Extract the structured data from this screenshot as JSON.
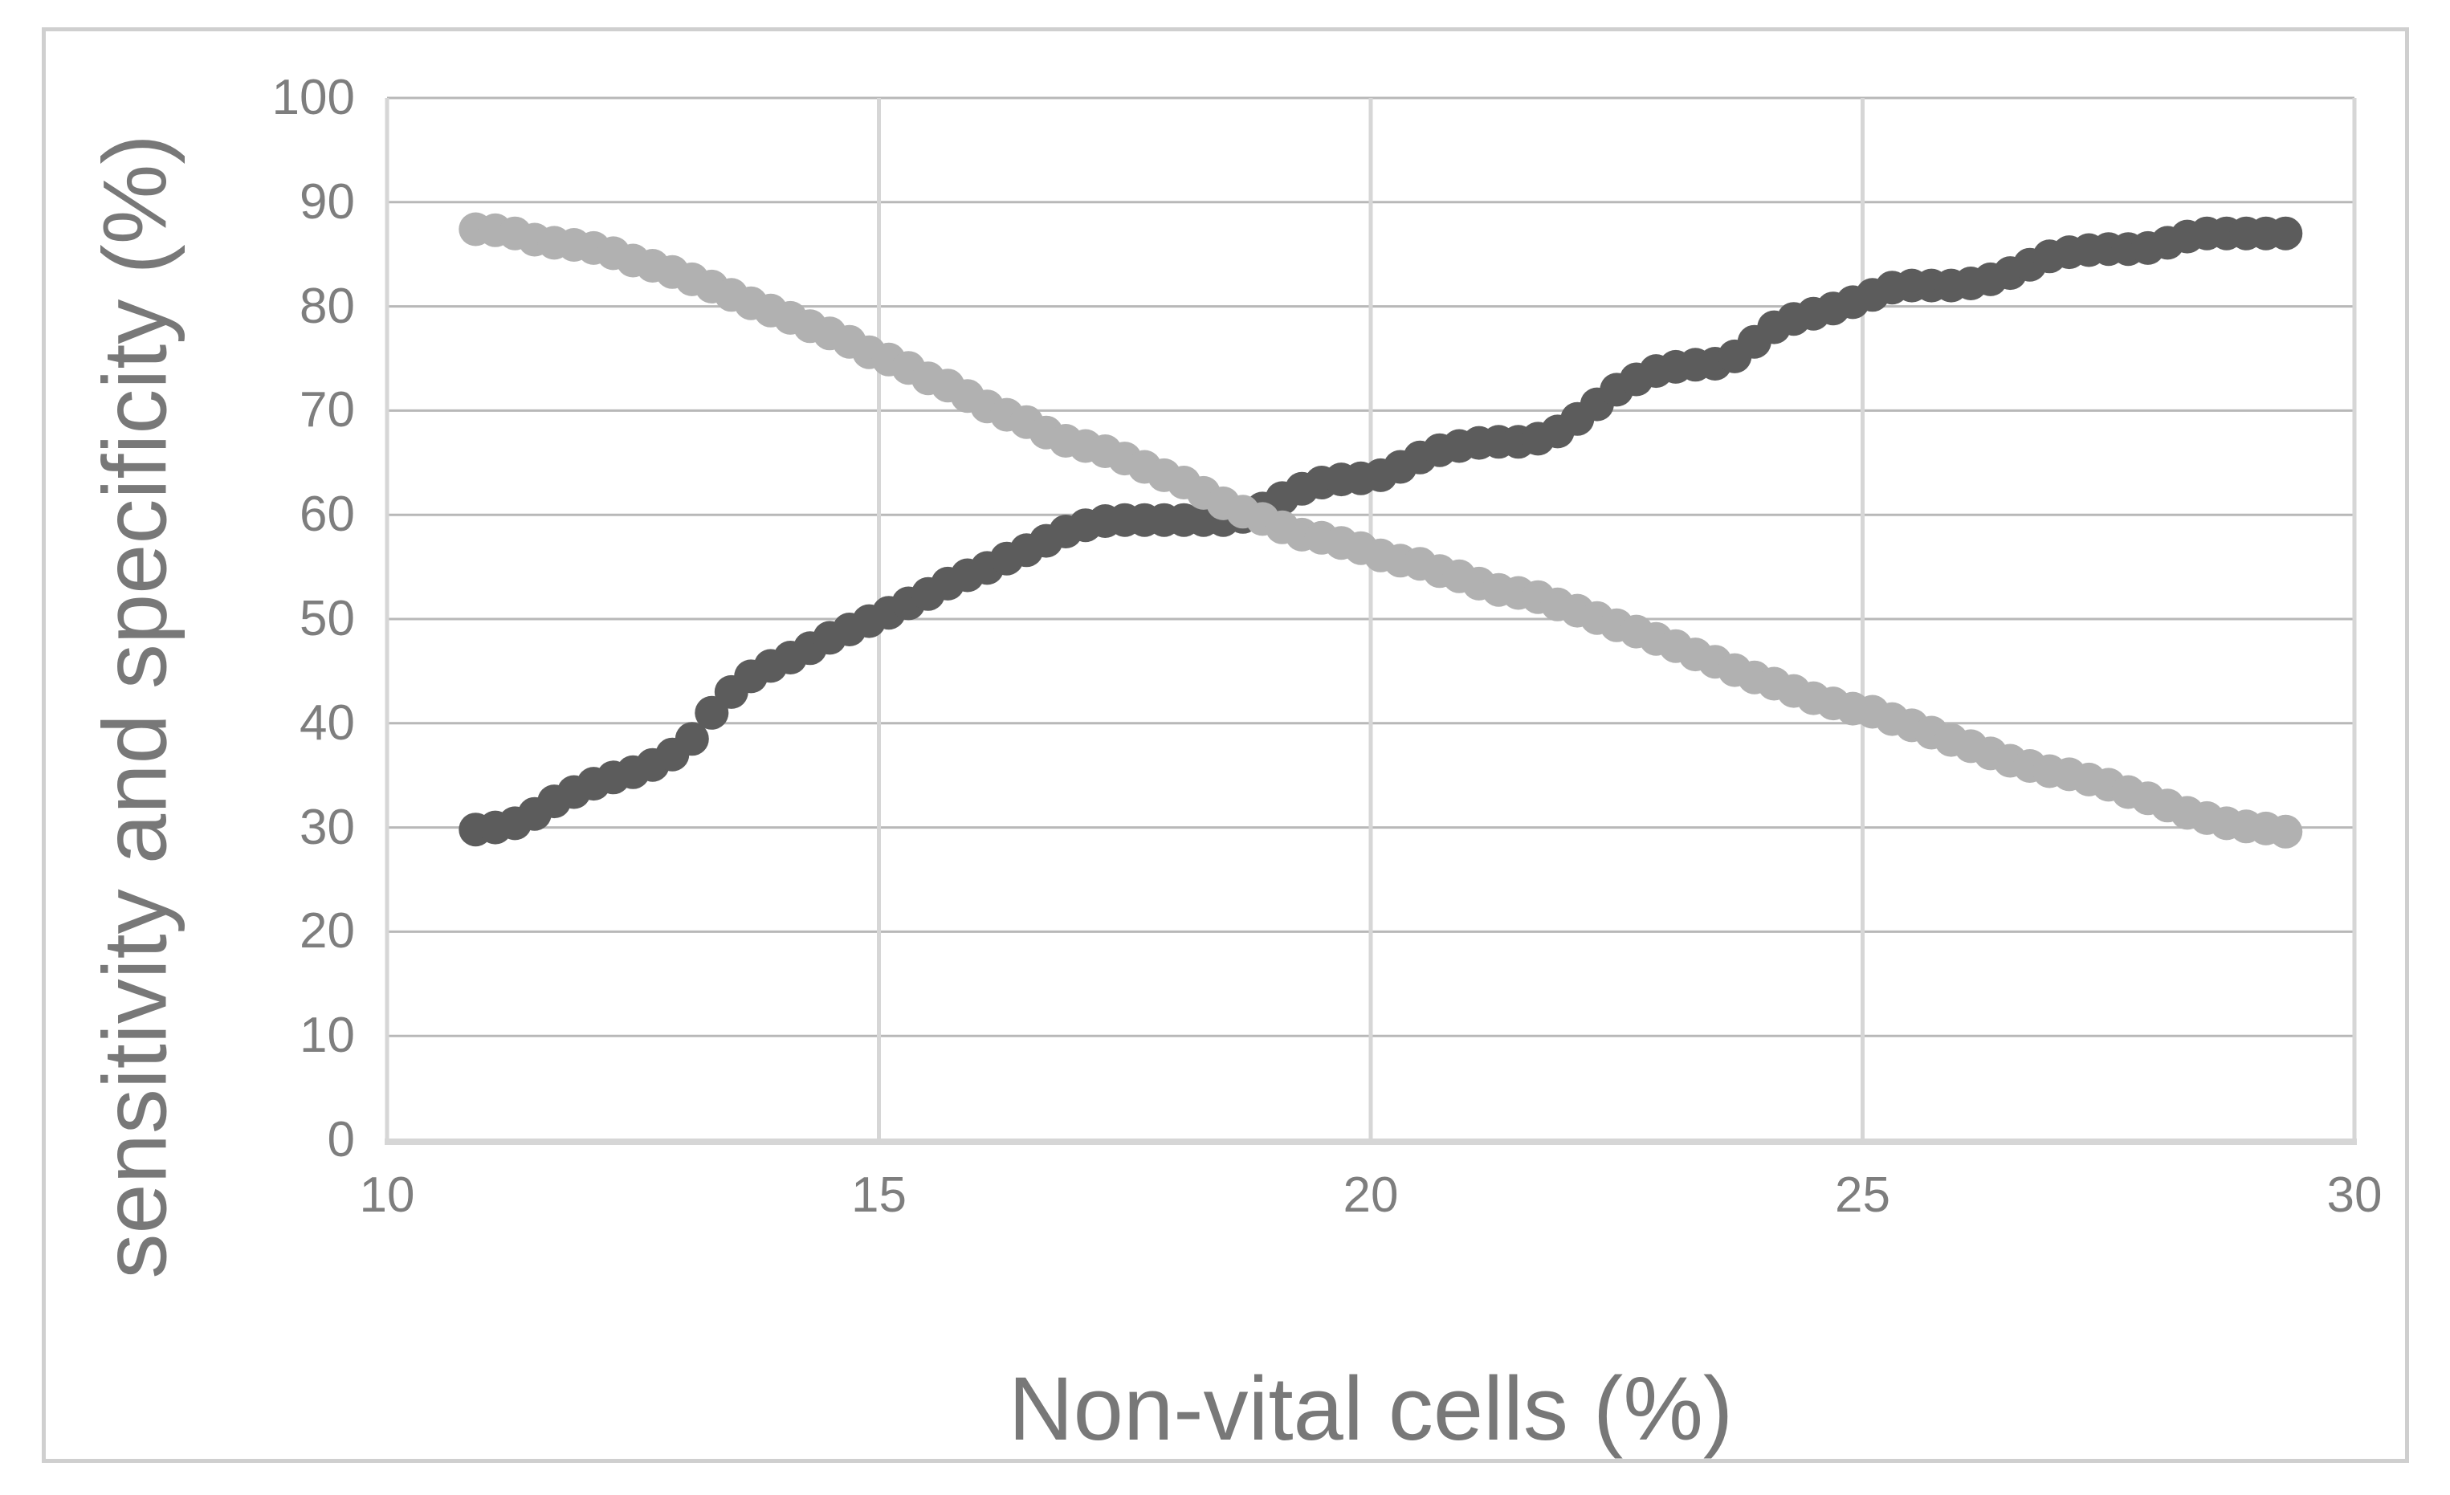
{
  "chart_data": {
    "type": "scatter",
    "title": "",
    "xlabel": "Non-vital cells (%)",
    "ylabel": "sensitivity and specificity (%)",
    "xlim": [
      10,
      30
    ],
    "ylim": [
      0,
      100
    ],
    "x_ticks": [
      10,
      15,
      20,
      25,
      30
    ],
    "y_ticks": [
      0,
      10,
      20,
      30,
      40,
      50,
      60,
      70,
      80,
      90,
      100
    ],
    "grid": true,
    "legend_position": "none",
    "marker": "circle",
    "colors": {
      "sensitivity_series": "#5c5c5c",
      "specificity_series": "#b1b1b1",
      "h_gridline": "#b8b8b8",
      "v_gridline": "#d6d6d6",
      "axis_line": "#d6d6d6",
      "tick_text": "#7e7e7e",
      "title_text": "#787878",
      "frame_border": "#cfcfcf"
    },
    "series": [
      {
        "name": "sensitivity",
        "color": "#5c5c5c",
        "points": [
          [
            10.9,
            29.8
          ],
          [
            11.1,
            30.0
          ],
          [
            11.3,
            30.4
          ],
          [
            11.5,
            31.3
          ],
          [
            11.7,
            32.5
          ],
          [
            11.9,
            33.4
          ],
          [
            12.1,
            34.2
          ],
          [
            12.3,
            34.8
          ],
          [
            12.5,
            35.3
          ],
          [
            12.7,
            36.0
          ],
          [
            12.9,
            37.0
          ],
          [
            13.1,
            38.5
          ],
          [
            13.3,
            41.0
          ],
          [
            13.5,
            43.0
          ],
          [
            13.7,
            44.5
          ],
          [
            13.9,
            45.5
          ],
          [
            14.1,
            46.3
          ],
          [
            14.3,
            47.2
          ],
          [
            14.5,
            48.2
          ],
          [
            14.7,
            49.0
          ],
          [
            14.9,
            49.8
          ],
          [
            15.1,
            50.6
          ],
          [
            15.3,
            51.5
          ],
          [
            15.5,
            52.4
          ],
          [
            15.7,
            53.4
          ],
          [
            15.9,
            54.2
          ],
          [
            16.1,
            54.9
          ],
          [
            16.3,
            55.8
          ],
          [
            16.5,
            56.6
          ],
          [
            16.7,
            57.5
          ],
          [
            16.9,
            58.4
          ],
          [
            17.1,
            59.0
          ],
          [
            17.3,
            59.4
          ],
          [
            17.5,
            59.5
          ],
          [
            17.7,
            59.5
          ],
          [
            17.9,
            59.5
          ],
          [
            18.1,
            59.5
          ],
          [
            18.3,
            59.5
          ],
          [
            18.5,
            59.5
          ],
          [
            18.7,
            59.8
          ],
          [
            18.9,
            60.6
          ],
          [
            19.1,
            61.6
          ],
          [
            19.3,
            62.5
          ],
          [
            19.5,
            63.1
          ],
          [
            19.7,
            63.4
          ],
          [
            19.9,
            63.5
          ],
          [
            20.1,
            63.8
          ],
          [
            20.3,
            64.6
          ],
          [
            20.5,
            65.5
          ],
          [
            20.7,
            66.2
          ],
          [
            20.9,
            66.6
          ],
          [
            21.1,
            66.9
          ],
          [
            21.3,
            67.0
          ],
          [
            21.5,
            67.0
          ],
          [
            21.7,
            67.3
          ],
          [
            21.9,
            68.0
          ],
          [
            22.1,
            69.2
          ],
          [
            22.3,
            70.6
          ],
          [
            22.5,
            72.0
          ],
          [
            22.7,
            73.0
          ],
          [
            22.9,
            73.8
          ],
          [
            23.1,
            74.2
          ],
          [
            23.3,
            74.4
          ],
          [
            23.5,
            74.5
          ],
          [
            23.7,
            75.2
          ],
          [
            23.9,
            76.6
          ],
          [
            24.1,
            78.0
          ],
          [
            24.3,
            78.8
          ],
          [
            24.5,
            79.3
          ],
          [
            24.7,
            79.8
          ],
          [
            24.9,
            80.4
          ],
          [
            25.1,
            81.1
          ],
          [
            25.3,
            81.8
          ],
          [
            25.5,
            82.0
          ],
          [
            25.7,
            82.0
          ],
          [
            25.9,
            82.0
          ],
          [
            26.1,
            82.2
          ],
          [
            26.3,
            82.6
          ],
          [
            26.5,
            83.2
          ],
          [
            26.7,
            84.0
          ],
          [
            26.9,
            84.8
          ],
          [
            27.1,
            85.2
          ],
          [
            27.3,
            85.4
          ],
          [
            27.5,
            85.5
          ],
          [
            27.7,
            85.5
          ],
          [
            27.9,
            85.6
          ],
          [
            28.1,
            86.1
          ],
          [
            28.3,
            86.7
          ],
          [
            28.5,
            87.0
          ],
          [
            28.7,
            87.0
          ],
          [
            28.9,
            87.0
          ],
          [
            29.1,
            87.0
          ],
          [
            29.3,
            87.0
          ]
        ]
      },
      {
        "name": "specificity",
        "color": "#b1b1b1",
        "points": [
          [
            10.9,
            87.4
          ],
          [
            11.1,
            87.3
          ],
          [
            11.3,
            87.0
          ],
          [
            11.5,
            86.4
          ],
          [
            11.7,
            86.1
          ],
          [
            11.9,
            85.9
          ],
          [
            12.1,
            85.6
          ],
          [
            12.3,
            85.1
          ],
          [
            12.5,
            84.4
          ],
          [
            12.7,
            83.9
          ],
          [
            12.9,
            83.3
          ],
          [
            13.1,
            82.6
          ],
          [
            13.3,
            81.9
          ],
          [
            13.5,
            81.1
          ],
          [
            13.7,
            80.3
          ],
          [
            13.9,
            79.6
          ],
          [
            14.1,
            78.9
          ],
          [
            14.3,
            78.1
          ],
          [
            14.5,
            77.4
          ],
          [
            14.7,
            76.6
          ],
          [
            14.9,
            75.6
          ],
          [
            15.1,
            74.9
          ],
          [
            15.3,
            74.1
          ],
          [
            15.5,
            73.1
          ],
          [
            15.7,
            72.4
          ],
          [
            15.9,
            71.4
          ],
          [
            16.1,
            70.4
          ],
          [
            16.3,
            69.6
          ],
          [
            16.5,
            68.9
          ],
          [
            16.7,
            67.9
          ],
          [
            16.9,
            67.1
          ],
          [
            17.1,
            66.6
          ],
          [
            17.3,
            66.1
          ],
          [
            17.5,
            65.4
          ],
          [
            17.7,
            64.6
          ],
          [
            17.9,
            63.8
          ],
          [
            18.1,
            63.1
          ],
          [
            18.3,
            62.1
          ],
          [
            18.5,
            61.1
          ],
          [
            18.7,
            60.3
          ],
          [
            18.9,
            59.6
          ],
          [
            19.1,
            58.8
          ],
          [
            19.3,
            58.1
          ],
          [
            19.5,
            57.8
          ],
          [
            19.7,
            57.3
          ],
          [
            19.9,
            56.8
          ],
          [
            20.1,
            56.1
          ],
          [
            20.3,
            55.6
          ],
          [
            20.5,
            55.3
          ],
          [
            20.7,
            54.6
          ],
          [
            20.9,
            54.1
          ],
          [
            21.1,
            53.4
          ],
          [
            21.3,
            52.8
          ],
          [
            21.5,
            52.5
          ],
          [
            21.7,
            52.1
          ],
          [
            21.9,
            51.4
          ],
          [
            22.1,
            50.8
          ],
          [
            22.3,
            50.1
          ],
          [
            22.5,
            49.4
          ],
          [
            22.7,
            48.8
          ],
          [
            22.9,
            48.1
          ],
          [
            23.1,
            47.4
          ],
          [
            23.3,
            46.6
          ],
          [
            23.5,
            45.9
          ],
          [
            23.7,
            45.1
          ],
          [
            23.9,
            44.4
          ],
          [
            24.1,
            43.8
          ],
          [
            24.3,
            43.1
          ],
          [
            24.5,
            42.4
          ],
          [
            24.7,
            41.9
          ],
          [
            24.9,
            41.4
          ],
          [
            25.1,
            41.1
          ],
          [
            25.3,
            40.4
          ],
          [
            25.5,
            39.8
          ],
          [
            25.7,
            39.1
          ],
          [
            25.9,
            38.4
          ],
          [
            26.1,
            37.8
          ],
          [
            26.3,
            37.1
          ],
          [
            26.5,
            36.4
          ],
          [
            26.7,
            35.9
          ],
          [
            26.9,
            35.4
          ],
          [
            27.1,
            35.1
          ],
          [
            27.3,
            34.6
          ],
          [
            27.5,
            34.1
          ],
          [
            27.7,
            33.4
          ],
          [
            27.9,
            32.8
          ],
          [
            28.1,
            32.1
          ],
          [
            28.3,
            31.4
          ],
          [
            28.5,
            30.9
          ],
          [
            28.7,
            30.4
          ],
          [
            28.9,
            30.1
          ],
          [
            29.1,
            29.9
          ],
          [
            29.3,
            29.6
          ]
        ]
      }
    ]
  }
}
